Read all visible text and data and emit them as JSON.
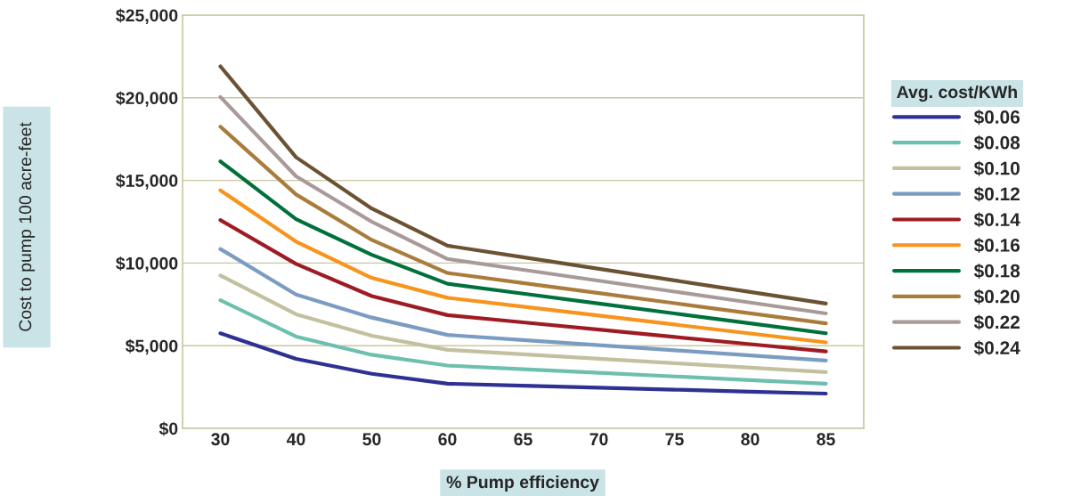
{
  "chart_data": {
    "type": "line",
    "xlabel": "% Pump efficiency",
    "ylabel": "Cost to pump 100 acre-feet",
    "legend_title": "Avg. cost/KWh",
    "categories": [
      "30",
      "40",
      "50",
      "60",
      "65",
      "70",
      "75",
      "80",
      "85"
    ],
    "ylim": [
      0,
      25000
    ],
    "yticks": [
      {
        "value": 0,
        "label": "$0"
      },
      {
        "value": 5000,
        "label": "$5,000"
      },
      {
        "value": 10000,
        "label": "$10,000"
      },
      {
        "value": 15000,
        "label": "$15,000"
      },
      {
        "value": 20000,
        "label": "$20,000"
      },
      {
        "value": 25000,
        "label": "$25,000"
      }
    ],
    "grid": "y",
    "legend": "right",
    "marker": "none",
    "line_style": "solid",
    "series": [
      {
        "name": "$0.06",
        "color": "#2e3192",
        "values": [
          5750,
          4200,
          3300,
          2700,
          2580,
          2460,
          2340,
          2220,
          2100
        ]
      },
      {
        "name": "$0.08",
        "color": "#6dbfae",
        "values": [
          7750,
          5550,
          4450,
          3800,
          3580,
          3360,
          3140,
          2920,
          2700
        ]
      },
      {
        "name": "$0.10",
        "color": "#c3c0a0",
        "values": [
          9250,
          6900,
          5600,
          4750,
          4480,
          4210,
          3940,
          3670,
          3400
        ]
      },
      {
        "name": "$0.12",
        "color": "#7b9cc2",
        "values": [
          10850,
          8100,
          6700,
          5650,
          5340,
          5030,
          4720,
          4410,
          4100
        ]
      },
      {
        "name": "$0.14",
        "color": "#9e1b23",
        "values": [
          12600,
          9950,
          8000,
          6850,
          6410,
          5970,
          5530,
          5090,
          4650
        ]
      },
      {
        "name": "$0.16",
        "color": "#f7941d",
        "values": [
          14400,
          11300,
          9100,
          7900,
          7360,
          6820,
          6280,
          5740,
          5200
        ]
      },
      {
        "name": "$0.18",
        "color": "#00703c",
        "values": [
          16150,
          12650,
          10500,
          8750,
          8150,
          7550,
          6950,
          6350,
          5750
        ]
      },
      {
        "name": "$0.20",
        "color": "#a97c3c",
        "values": [
          18250,
          14150,
          11400,
          9400,
          8790,
          8180,
          7570,
          6960,
          6350
        ]
      },
      {
        "name": "$0.22",
        "color": "#a99a9a",
        "values": [
          20050,
          15250,
          12500,
          10250,
          9590,
          8930,
          8270,
          7610,
          6950
        ]
      },
      {
        "name": "$0.24",
        "color": "#6b5232",
        "values": [
          21900,
          16400,
          13300,
          11050,
          10350,
          9650,
          8950,
          8250,
          7550
        ]
      }
    ]
  }
}
